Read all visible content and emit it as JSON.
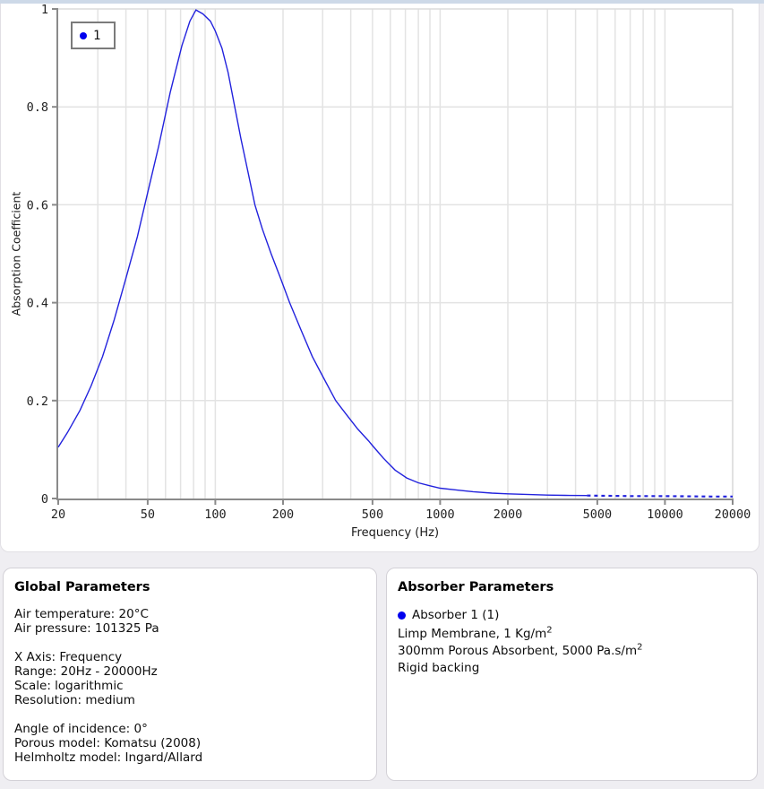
{
  "page": {
    "top_strip_color": "#cdd9e8",
    "background": "#efeef2",
    "card_background": "#ffffff"
  },
  "chart": {
    "legend_label": "1",
    "x_tick_labels": [
      "20",
      "50",
      "100",
      "200",
      "500",
      "1000",
      "2000",
      "5000",
      "10000",
      "20000"
    ],
    "y_tick_labels": [
      "0",
      "0.2",
      "0.4",
      "0.6",
      "0.8",
      "1"
    ],
    "colors": {
      "line": "#2222dd",
      "legend_dot": "#0000ee",
      "grid": "#e3e3e3",
      "axis": "#8a8a8a",
      "plot_border": "#dcdcdc",
      "tick_text": "#222222"
    }
  },
  "chart_data": {
    "type": "line",
    "title": "",
    "xlabel": "Frequency (Hz)",
    "ylabel": "Absorption Coefficient",
    "x_scale": "logarithmic",
    "xlim": [
      20,
      20000
    ],
    "ylim": [
      0,
      1
    ],
    "grid": true,
    "legend_position": "top-left",
    "legend": [
      {
        "label": "1",
        "color": "#2222dd"
      }
    ],
    "series": [
      {
        "name": "1",
        "color": "#2222dd",
        "dashed_from_hz": 4500,
        "points": [
          [
            20,
            0.105
          ],
          [
            22,
            0.135
          ],
          [
            25,
            0.18
          ],
          [
            28,
            0.23
          ],
          [
            31.5,
            0.29
          ],
          [
            35.5,
            0.365
          ],
          [
            40,
            0.45
          ],
          [
            45,
            0.535
          ],
          [
            50,
            0.625
          ],
          [
            56,
            0.72
          ],
          [
            63,
            0.83
          ],
          [
            71,
            0.925
          ],
          [
            77,
            0.975
          ],
          [
            82,
            0.998
          ],
          [
            88,
            0.99
          ],
          [
            95,
            0.975
          ],
          [
            100,
            0.955
          ],
          [
            107,
            0.92
          ],
          [
            114,
            0.87
          ],
          [
            122,
            0.8
          ],
          [
            130,
            0.735
          ],
          [
            140,
            0.665
          ],
          [
            150,
            0.6
          ],
          [
            162,
            0.55
          ],
          [
            177,
            0.5
          ],
          [
            195,
            0.45
          ],
          [
            214,
            0.4
          ],
          [
            240,
            0.345
          ],
          [
            270,
            0.29
          ],
          [
            300,
            0.25
          ],
          [
            343,
            0.2
          ],
          [
            385,
            0.17
          ],
          [
            430,
            0.142
          ],
          [
            480,
            0.118
          ],
          [
            500,
            0.108
          ],
          [
            560,
            0.082
          ],
          [
            630,
            0.058
          ],
          [
            710,
            0.042
          ],
          [
            800,
            0.032
          ],
          [
            900,
            0.026
          ],
          [
            1000,
            0.021
          ],
          [
            1200,
            0.017
          ],
          [
            1400,
            0.014
          ],
          [
            1700,
            0.011
          ],
          [
            2000,
            0.0095
          ],
          [
            2500,
            0.008
          ],
          [
            3000,
            0.007
          ],
          [
            3600,
            0.0065
          ],
          [
            4500,
            0.006
          ],
          [
            5500,
            0.0055
          ],
          [
            7000,
            0.005
          ],
          [
            9000,
            0.005
          ],
          [
            12000,
            0.0045
          ],
          [
            16000,
            0.004
          ],
          [
            20000,
            0.004
          ]
        ]
      }
    ]
  },
  "global_params": {
    "title": "Global Parameters",
    "groups": [
      [
        "Air temperature: 20°C",
        "Air pressure: 101325 Pa"
      ],
      [
        "X Axis: Frequency",
        "Range: 20Hz - 20000Hz",
        "Scale: logarithmic",
        "Resolution: medium"
      ],
      [
        "Angle of incidence: 0°",
        "Porous model: Komatsu (2008)",
        "Helmholtz model: Ingard/Allard"
      ]
    ]
  },
  "absorber_params": {
    "title": "Absorber Parameters",
    "legend": {
      "dot_color": "#0000ee",
      "label": "Absorber 1 (1)"
    },
    "lines": [
      {
        "text": "Limp Membrane, 1 Kg/m",
        "sup": "2"
      },
      {
        "text": "300mm Porous Absorbent, 5000 Pa.s/m",
        "sup": "2"
      },
      {
        "text": "Rigid backing",
        "sup": ""
      }
    ]
  }
}
